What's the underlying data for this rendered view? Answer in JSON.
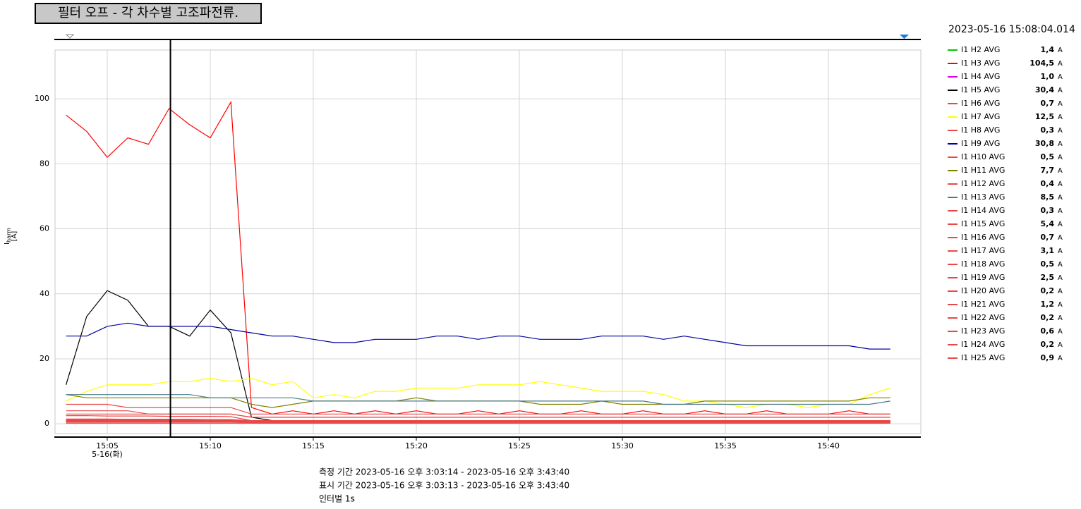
{
  "chart_data": {
    "type": "line",
    "title": "필터 오프 - 각 차수별 고조파전류.",
    "timestamp": "2023-05-16 15:08:04.014",
    "y_label": "I",
    "y_label_sub": "harm",
    "y_unit": "[A]",
    "unit": "A",
    "x_date_label": "5-16(화)",
    "footer": [
      "측정 기간  2023-05-16 오후 3:03:14 - 2023-05-16 오후 3:43:40",
      "표시 기간   2023-05-16 오후 3:03:13 - 2023-05-16 오후 3:43:40",
      "인터벌  1s"
    ],
    "xlim": [
      "15:02:28",
      "15:44:29"
    ],
    "xticks": [
      "15:05",
      "15:10",
      "15:15",
      "15:20",
      "15:25",
      "15:30",
      "15:35",
      "15:40"
    ],
    "ylim": [
      -3,
      115
    ],
    "yticks": [
      0,
      20,
      40,
      60,
      80,
      100
    ],
    "grid": true,
    "x": [
      "15:03",
      "15:04",
      "15:05",
      "15:06",
      "15:07",
      "15:08",
      "15:09",
      "15:10",
      "15:11",
      "15:12",
      "15:13",
      "15:14",
      "15:15",
      "15:16",
      "15:17",
      "15:18",
      "15:19",
      "15:20",
      "15:21",
      "15:22",
      "15:23",
      "15:24",
      "15:25",
      "15:26",
      "15:27",
      "15:28",
      "15:29",
      "15:30",
      "15:31",
      "15:32",
      "15:33",
      "15:34",
      "15:35",
      "15:36",
      "15:37",
      "15:38",
      "15:39",
      "15:40",
      "15:41",
      "15:42",
      "15:43"
    ],
    "series": [
      {
        "name": "I1 H2 AVG",
        "color": "#00c800",
        "readout": "1,4",
        "values": [
          1.2,
          1.3,
          1.4,
          1.4,
          1.4,
          1.4,
          1.3,
          1.3,
          1.3,
          1.0,
          0.8,
          0.8,
          0.8,
          0.9,
          0.9,
          0.8,
          0.8,
          0.8,
          0.8,
          0.8,
          0.8,
          0.8,
          0.8,
          0.8,
          0.8,
          0.8,
          0.8,
          0.8,
          0.8,
          0.8,
          0.8,
          0.8,
          0.8,
          0.8,
          0.8,
          0.8,
          0.8,
          0.8,
          0.8,
          0.8,
          0.8
        ]
      },
      {
        "name": "I1 H3 AVG",
        "color": "#ff0000",
        "readout": "104,5",
        "values": [
          95,
          90,
          82,
          88,
          86,
          97,
          92,
          88,
          99,
          5,
          3,
          4,
          3,
          4,
          3,
          4,
          3,
          4,
          3,
          3,
          4,
          3,
          4,
          3,
          3,
          4,
          3,
          3,
          4,
          3,
          3,
          4,
          3,
          3,
          4,
          3,
          3,
          3,
          4,
          3,
          3
        ]
      },
      {
        "name": "I1 H4 AVG",
        "color": "#e000e0",
        "readout": "1,0",
        "values": [
          1.0,
          1.0,
          1.0,
          1.0,
          1.0,
          1.0,
          1.0,
          1.0,
          1.0,
          0.6,
          0.5,
          0.5,
          0.5,
          0.5,
          0.5,
          0.5,
          0.5,
          0.5,
          0.5,
          0.5,
          0.5,
          0.5,
          0.5,
          0.5,
          0.5,
          0.5,
          0.5,
          0.5,
          0.5,
          0.5,
          0.5,
          0.5,
          0.5,
          0.5,
          0.5,
          0.5,
          0.5,
          0.5,
          0.5,
          0.5,
          0.5
        ]
      },
      {
        "name": "I1 H5 AVG",
        "color": "#000000",
        "readout": "30,4",
        "values": [
          12,
          33,
          41,
          38,
          30,
          30,
          27,
          35,
          28,
          2,
          1,
          1,
          1,
          1,
          1,
          1,
          1,
          1,
          1,
          1,
          1,
          1,
          1,
          1,
          1,
          1,
          1,
          1,
          1,
          1,
          1,
          1,
          1,
          1,
          1,
          1,
          1,
          1,
          1,
          1,
          1
        ]
      },
      {
        "name": "I1 H6 AVG",
        "color": "#e84848",
        "readout": "0,7",
        "values": [
          2.5,
          2.5,
          2.4,
          2.4,
          2.4,
          2.3,
          2.3,
          2.3,
          2.2,
          1.0,
          0.7,
          0.7,
          0.7,
          0.7,
          0.7,
          0.7,
          0.7,
          0.7,
          0.7,
          0.7,
          0.7,
          0.7,
          0.7,
          0.7,
          0.7,
          0.7,
          0.7,
          0.7,
          0.7,
          0.7,
          0.7,
          0.7,
          0.7,
          0.7,
          0.7,
          0.7,
          0.7,
          0.7,
          0.7,
          0.7,
          0.7
        ]
      },
      {
        "name": "I1 H7 AVG",
        "color": "#ffff00",
        "readout": "12,5",
        "values": [
          7,
          10,
          12,
          12,
          12,
          13,
          13,
          14,
          13,
          14,
          12,
          13,
          8,
          9,
          8,
          10,
          10,
          11,
          11,
          11,
          12,
          12,
          12,
          13,
          12,
          11,
          10,
          10,
          10,
          9,
          7,
          7,
          6,
          5,
          6,
          6,
          5,
          6,
          6,
          9,
          11
        ]
      },
      {
        "name": "I1 H8 AVG",
        "color": "#e84848",
        "readout": "0,3",
        "values": [
          1.2,
          1.2,
          1.2,
          1.1,
          1.1,
          1.1,
          1.1,
          1.1,
          1.0,
          0.4,
          0.3,
          0.3,
          0.3,
          0.3,
          0.3,
          0.3,
          0.3,
          0.3,
          0.3,
          0.3,
          0.3,
          0.3,
          0.3,
          0.3,
          0.3,
          0.3,
          0.3,
          0.3,
          0.3,
          0.3,
          0.3,
          0.3,
          0.3,
          0.3,
          0.3,
          0.3,
          0.3,
          0.3,
          0.3,
          0.3,
          0.3
        ]
      },
      {
        "name": "I1 H9 AVG",
        "color": "#0000a0",
        "readout": "30,8",
        "values": [
          27,
          27,
          30,
          31,
          30,
          30,
          30,
          30,
          29,
          28,
          27,
          27,
          26,
          25,
          25,
          26,
          26,
          26,
          27,
          27,
          26,
          27,
          27,
          26,
          26,
          26,
          27,
          27,
          27,
          26,
          27,
          26,
          25,
          24,
          24,
          24,
          24,
          24,
          24,
          23,
          23
        ]
      },
      {
        "name": "I1 H10 AVG",
        "color": "#e84848",
        "readout": "0,5",
        "values": [
          1.5,
          1.5,
          1.5,
          1.4,
          1.4,
          1.4,
          1.4,
          1.3,
          1.3,
          0.6,
          0.5,
          0.5,
          0.5,
          0.5,
          0.5,
          0.5,
          0.5,
          0.5,
          0.5,
          0.5,
          0.5,
          0.5,
          0.5,
          0.5,
          0.5,
          0.5,
          0.5,
          0.5,
          0.5,
          0.5,
          0.5,
          0.5,
          0.5,
          0.5,
          0.5,
          0.5,
          0.5,
          0.5,
          0.5,
          0.5,
          0.5
        ]
      },
      {
        "name": "I1 H11 AVG",
        "color": "#808000",
        "readout": "7,7",
        "values": [
          9,
          8,
          8,
          8,
          8,
          8,
          8,
          8,
          8,
          6,
          5,
          6,
          7,
          7,
          7,
          7,
          7,
          8,
          7,
          7,
          7,
          7,
          7,
          6,
          6,
          6,
          7,
          6,
          6,
          6,
          6,
          7,
          7,
          7,
          7,
          7,
          7,
          7,
          7,
          8,
          8
        ]
      },
      {
        "name": "I1 H12 AVG",
        "color": "#e84848",
        "readout": "0,4",
        "values": [
          0.9,
          0.9,
          0.9,
          0.9,
          0.9,
          0.9,
          0.9,
          0.9,
          0.9,
          0.5,
          0.4,
          0.4,
          0.4,
          0.4,
          0.4,
          0.4,
          0.4,
          0.4,
          0.4,
          0.4,
          0.4,
          0.4,
          0.4,
          0.4,
          0.4,
          0.4,
          0.4,
          0.4,
          0.4,
          0.4,
          0.4,
          0.4,
          0.4,
          0.4,
          0.4,
          0.4,
          0.4,
          0.4,
          0.4,
          0.4,
          0.4
        ]
      },
      {
        "name": "I1 H13 AVG",
        "color": "#4a7a8a",
        "readout": "8,5",
        "values": [
          9,
          9,
          9,
          9,
          9,
          9,
          9,
          8,
          8,
          8,
          8,
          8,
          7,
          7,
          7,
          7,
          7,
          7,
          7,
          7,
          7,
          7,
          7,
          7,
          7,
          7,
          7,
          7,
          7,
          6,
          6,
          6,
          6,
          6,
          6,
          6,
          6,
          6,
          6,
          6,
          7
        ]
      },
      {
        "name": "I1 H14 AVG",
        "color": "#e84848",
        "readout": "0,3",
        "values": [
          0.7,
          0.7,
          0.7,
          0.7,
          0.7,
          0.7,
          0.7,
          0.7,
          0.7,
          0.4,
          0.3,
          0.3,
          0.3,
          0.3,
          0.3,
          0.3,
          0.3,
          0.3,
          0.3,
          0.3,
          0.3,
          0.3,
          0.3,
          0.3,
          0.3,
          0.3,
          0.3,
          0.3,
          0.3,
          0.3,
          0.3,
          0.3,
          0.3,
          0.3,
          0.3,
          0.3,
          0.3,
          0.3,
          0.3,
          0.3,
          0.3
        ]
      },
      {
        "name": "I1 H15 AVG",
        "color": "#e84848",
        "readout": "5,4",
        "values": [
          6,
          6,
          6,
          5,
          5,
          5,
          5,
          5,
          5,
          3,
          3,
          3,
          3,
          3,
          3,
          3,
          3,
          3,
          3,
          3,
          3,
          3,
          3,
          3,
          3,
          3,
          3,
          3,
          3,
          3,
          3,
          3,
          3,
          3,
          3,
          3,
          3,
          3,
          3,
          3,
          3
        ]
      },
      {
        "name": "I1 H16 AVG",
        "color": "#e84848",
        "readout": "0,7",
        "values": [
          0.8,
          0.8,
          0.8,
          0.8,
          0.8,
          0.8,
          0.8,
          0.8,
          0.8,
          0.6,
          0.5,
          0.5,
          0.5,
          0.5,
          0.5,
          0.5,
          0.5,
          0.5,
          0.5,
          0.5,
          0.5,
          0.5,
          0.5,
          0.5,
          0.5,
          0.5,
          0.5,
          0.5,
          0.5,
          0.5,
          0.5,
          0.5,
          0.5,
          0.5,
          0.5,
          0.5,
          0.5,
          0.5,
          0.5,
          0.5,
          0.5
        ]
      },
      {
        "name": "I1 H17 AVG",
        "color": "#e84848",
        "readout": "3,1",
        "values": [
          4,
          4,
          4,
          4,
          3,
          3,
          3,
          3,
          3,
          2,
          2,
          2,
          2,
          2,
          2,
          2,
          2,
          2,
          2,
          2,
          2,
          2,
          2,
          2,
          2,
          2,
          2,
          2,
          2,
          2,
          2,
          2,
          2,
          2,
          2,
          2,
          2,
          2,
          2,
          2,
          2
        ]
      },
      {
        "name": "I1 H18 AVG",
        "color": "#e84848",
        "readout": "0,5",
        "values": [
          0.6,
          0.6,
          0.6,
          0.6,
          0.6,
          0.6,
          0.6,
          0.6,
          0.6,
          0.4,
          0.4,
          0.4,
          0.4,
          0.4,
          0.4,
          0.4,
          0.4,
          0.4,
          0.4,
          0.4,
          0.4,
          0.4,
          0.4,
          0.4,
          0.4,
          0.4,
          0.4,
          0.4,
          0.4,
          0.4,
          0.4,
          0.4,
          0.4,
          0.4,
          0.4,
          0.4,
          0.4,
          0.4,
          0.4,
          0.4,
          0.4
        ]
      },
      {
        "name": "I1 H19 AVG",
        "color": "#e84848",
        "readout": "2,5",
        "values": [
          3,
          3,
          3,
          3,
          3,
          3,
          3,
          3,
          3,
          2,
          2,
          2,
          2,
          2,
          2,
          2,
          2,
          2,
          2,
          2,
          2,
          2,
          2,
          2,
          2,
          2,
          2,
          2,
          2,
          2,
          2,
          2,
          2,
          2,
          2,
          2,
          2,
          2,
          2,
          2,
          2
        ]
      },
      {
        "name": "I1 H20 AVG",
        "color": "#e84848",
        "readout": "0,2",
        "values": [
          0.3,
          0.3,
          0.3,
          0.3,
          0.3,
          0.3,
          0.3,
          0.3,
          0.3,
          0.2,
          0.2,
          0.2,
          0.2,
          0.2,
          0.2,
          0.2,
          0.2,
          0.2,
          0.2,
          0.2,
          0.2,
          0.2,
          0.2,
          0.2,
          0.2,
          0.2,
          0.2,
          0.2,
          0.2,
          0.2,
          0.2,
          0.2,
          0.2,
          0.2,
          0.2,
          0.2,
          0.2,
          0.2,
          0.2,
          0.2,
          0.2
        ]
      },
      {
        "name": "I1 H21 AVG",
        "color": "#e84848",
        "readout": "1,2",
        "values": [
          1.4,
          1.4,
          1.3,
          1.3,
          1.3,
          1.2,
          1.2,
          1.2,
          1.2,
          1.0,
          1.0,
          1.0,
          1.0,
          1.0,
          1.0,
          1.0,
          1.0,
          1.0,
          1.0,
          1.0,
          1.0,
          1.0,
          1.0,
          1.0,
          1.0,
          1.0,
          1.0,
          1.0,
          1.0,
          1.0,
          1.0,
          1.0,
          1.0,
          1.0,
          1.0,
          1.0,
          1.0,
          1.0,
          1.0,
          1.0,
          1.0
        ]
      },
      {
        "name": "I1 H22 AVG",
        "color": "#e84848",
        "readout": "0,2",
        "values": [
          0.2,
          0.2,
          0.2,
          0.2,
          0.2,
          0.2,
          0.2,
          0.2,
          0.2,
          0.2,
          0.2,
          0.2,
          0.2,
          0.2,
          0.2,
          0.2,
          0.2,
          0.2,
          0.2,
          0.2,
          0.2,
          0.2,
          0.2,
          0.2,
          0.2,
          0.2,
          0.2,
          0.2,
          0.2,
          0.2,
          0.2,
          0.2,
          0.2,
          0.2,
          0.2,
          0.2,
          0.2,
          0.2,
          0.2,
          0.2,
          0.2
        ]
      },
      {
        "name": "I1 H23 AVG",
        "color": "#e84848",
        "readout": "0,6",
        "values": [
          0.7,
          0.7,
          0.7,
          0.7,
          0.7,
          0.6,
          0.6,
          0.6,
          0.6,
          0.5,
          0.5,
          0.5,
          0.5,
          0.5,
          0.5,
          0.5,
          0.5,
          0.5,
          0.5,
          0.5,
          0.5,
          0.5,
          0.5,
          0.5,
          0.5,
          0.5,
          0.5,
          0.5,
          0.5,
          0.5,
          0.5,
          0.5,
          0.5,
          0.5,
          0.5,
          0.5,
          0.5,
          0.5,
          0.5,
          0.5,
          0.5
        ]
      },
      {
        "name": "I1 H24 AVG",
        "color": "#e84848",
        "readout": "0,2",
        "values": [
          0.2,
          0.2,
          0.2,
          0.2,
          0.2,
          0.2,
          0.2,
          0.2,
          0.2,
          0.2,
          0.2,
          0.2,
          0.2,
          0.2,
          0.2,
          0.2,
          0.2,
          0.2,
          0.2,
          0.2,
          0.2,
          0.2,
          0.2,
          0.2,
          0.2,
          0.2,
          0.2,
          0.2,
          0.2,
          0.2,
          0.2,
          0.2,
          0.2,
          0.2,
          0.2,
          0.2,
          0.2,
          0.2,
          0.2,
          0.2,
          0.2
        ]
      },
      {
        "name": "I1 H25 AVG",
        "color": "#e84848",
        "readout": "0,9",
        "values": [
          1.0,
          1.0,
          1.0,
          1.0,
          0.9,
          0.9,
          0.9,
          0.9,
          0.9,
          0.7,
          0.7,
          0.7,
          0.7,
          0.7,
          0.7,
          0.7,
          0.7,
          0.7,
          0.7,
          0.7,
          0.7,
          0.7,
          0.7,
          0.7,
          0.7,
          0.7,
          0.7,
          0.7,
          0.7,
          0.7,
          0.7,
          0.7,
          0.7,
          0.7,
          0.7,
          0.7,
          0.7,
          0.7,
          0.7,
          0.7,
          0.7
        ]
      }
    ]
  }
}
